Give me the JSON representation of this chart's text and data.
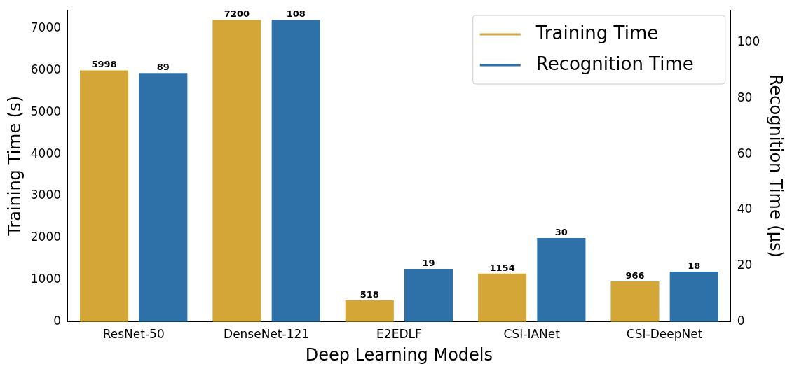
{
  "chart_data": {
    "type": "bar",
    "xlabel": "Deep Learning Models",
    "ylabel": "Training Time (s)",
    "y2label": "Recognition Time (μs)",
    "categories": [
      "ResNet-50",
      "DenseNet-121",
      "E2EDLF",
      "CSI-IANet",
      "CSI-DeepNet"
    ],
    "series": [
      {
        "name": "Training Time",
        "color": "#d4a638",
        "values": [
          5998,
          7200,
          518,
          1154,
          966
        ]
      },
      {
        "name": "Recognition Time",
        "color": "#2e70a8",
        "axis": "y2",
        "values": [
          89,
          108,
          19,
          30,
          18
        ]
      }
    ],
    "ylim": [
      0,
      7440
    ],
    "yticks": [
      0,
      1000,
      2000,
      3000,
      4000,
      5000,
      6000,
      7000
    ],
    "y2lim": [
      0,
      111.6
    ],
    "y2ticks": [
      0,
      20,
      40,
      60,
      80,
      100
    ],
    "data_labels": true,
    "legend": "top right",
    "grid": false
  }
}
